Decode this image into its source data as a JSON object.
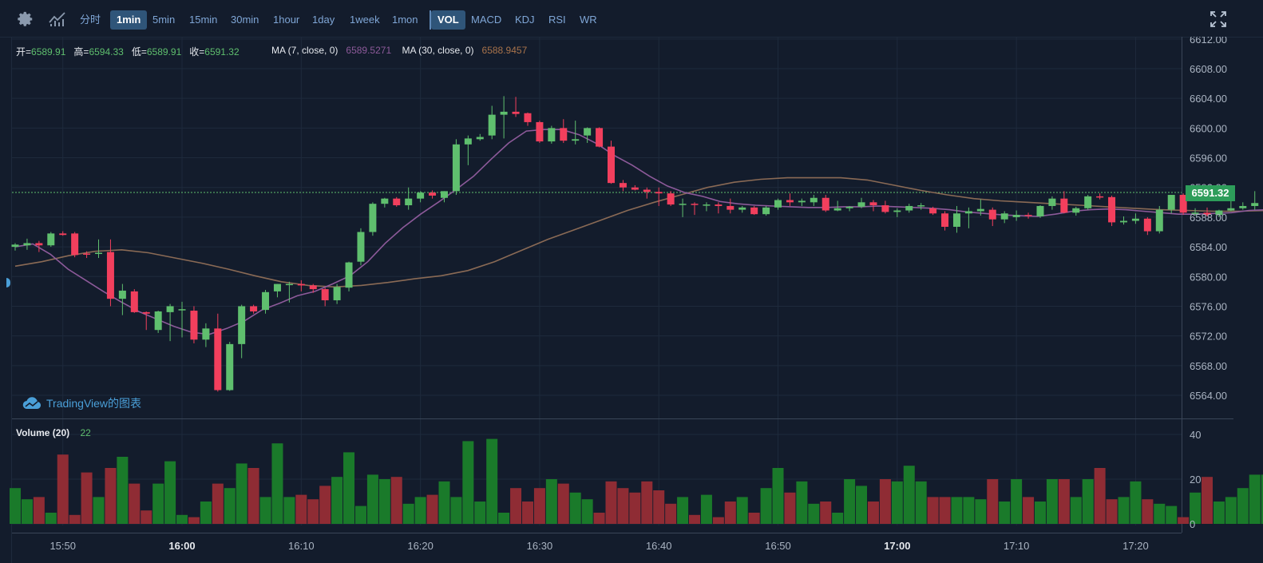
{
  "toolbar": {
    "settings_icon": "gear-icon",
    "indicators_icon": "chart-line-icon",
    "fullscreen_icon": "fullscreen-icon",
    "intervals": [
      {
        "label": "分时",
        "active": false
      },
      {
        "label": "1min",
        "active": true
      },
      {
        "label": "5min",
        "active": false
      },
      {
        "label": "15min",
        "active": false
      },
      {
        "label": "30min",
        "active": false
      },
      {
        "label": "1hour",
        "active": false
      },
      {
        "label": "1day",
        "active": false
      },
      {
        "label": "1week",
        "active": false
      },
      {
        "label": "1mon",
        "active": false
      }
    ],
    "indicators": [
      {
        "label": "VOL",
        "active": true
      },
      {
        "label": "MACD",
        "active": false
      },
      {
        "label": "KDJ",
        "active": false
      },
      {
        "label": "RSI",
        "active": false
      },
      {
        "label": "WR",
        "active": false
      }
    ]
  },
  "legend": {
    "open_label": "开=",
    "open_value": "6589.91",
    "high_label": "高=",
    "high_value": "6594.33",
    "low_label": "低=",
    "low_value": "6589.91",
    "close_label": "收=",
    "close_value": "6591.32",
    "ma7_label": "MA (7, close, 0)",
    "ma7_value": "6589.5271",
    "ma30_label": "MA (30, close, 0)",
    "ma30_value": "6588.9457"
  },
  "volume_legend": {
    "label": "Volume (20)",
    "value": "22"
  },
  "watermark": "TradingView的图表",
  "last_price": "6591.32",
  "colors": {
    "up": "#5fbf6e",
    "down": "#f23f5d",
    "vol_up": "#1a7a2a",
    "vol_down": "#8f2c34",
    "ma7": "#8d5a9a",
    "ma30": "#8a6a55",
    "background": "#131c2c"
  },
  "chart_data": {
    "type": "candlestick",
    "price_axis": {
      "ticks": [
        "6564.00",
        "6568.00",
        "6572.00",
        "6576.00",
        "6580.00",
        "6584.00",
        "6588.00",
        "6592.00",
        "6596.00",
        "6600.00",
        "6604.00",
        "6608.00",
        "6612.00"
      ],
      "ylim": [
        6563,
        6612
      ]
    },
    "volume_axis": {
      "ticks": [
        "0",
        "20",
        "40"
      ],
      "ylim": [
        0,
        42
      ]
    },
    "time_axis": [
      {
        "label": "15:50",
        "index": 4,
        "bold": false
      },
      {
        "label": "16:00",
        "index": 14,
        "bold": true
      },
      {
        "label": "16:10",
        "index": 24,
        "bold": false
      },
      {
        "label": "16:20",
        "index": 34,
        "bold": false
      },
      {
        "label": "16:30",
        "index": 44,
        "bold": false
      },
      {
        "label": "16:40",
        "index": 54,
        "bold": false
      },
      {
        "label": "16:50",
        "index": 64,
        "bold": false
      },
      {
        "label": "17:00",
        "index": 74,
        "bold": true
      },
      {
        "label": "17:10",
        "index": 84,
        "bold": false
      },
      {
        "label": "17:20",
        "index": 94,
        "bold": false
      }
    ],
    "candles": [
      [
        6584.0,
        6584.5,
        6583.5,
        6584.3
      ],
      [
        6584.2,
        6585.1,
        6583.6,
        6584.5
      ],
      [
        6584.5,
        6584.8,
        6583.3,
        6584.2
      ],
      [
        6584.2,
        6586.0,
        6584.0,
        6585.8
      ],
      [
        6585.8,
        6586.1,
        6585.5,
        6585.6
      ],
      [
        6585.8,
        6586.0,
        6582.6,
        6582.9
      ],
      [
        6583.1,
        6583.4,
        6582.5,
        6583.0
      ],
      [
        6583.1,
        6585.0,
        6582.5,
        6583.2
      ],
      [
        6583.3,
        6585.0,
        6576.0,
        6577.0
      ],
      [
        6577.0,
        6579.0,
        6574.8,
        6578.1
      ],
      [
        6578.0,
        6578.3,
        6575.1,
        6575.2
      ],
      [
        6575.2,
        6575.3,
        6572.8,
        6575.0
      ],
      [
        6572.8,
        6575.4,
        6572.4,
        6575.3
      ],
      [
        6575.2,
        6576.3,
        6571.3,
        6576.0
      ],
      [
        6575.6,
        6576.6,
        6571.8,
        6575.6
      ],
      [
        6575.4,
        6576.0,
        6571.0,
        6571.5
      ],
      [
        6571.5,
        6573.7,
        6570.5,
        6573.0
      ],
      [
        6573.0,
        6575.0,
        6564.5,
        6564.7
      ],
      [
        6564.7,
        6571.2,
        6564.6,
        6570.9
      ],
      [
        6570.9,
        6576.2,
        6569.0,
        6576.0
      ],
      [
        6576.0,
        6576.2,
        6575.0,
        6575.3
      ],
      [
        6575.5,
        6578.2,
        6575.0,
        6577.9
      ],
      [
        6578.0,
        6579.0,
        6577.2,
        6579.0
      ],
      [
        6579.0,
        6579.3,
        6576.5,
        6579.0
      ],
      [
        6579.0,
        6579.5,
        6578.0,
        6578.8
      ],
      [
        6578.8,
        6579.0,
        6577.8,
        6578.3
      ],
      [
        6578.3,
        6578.5,
        6576.0,
        6576.8
      ],
      [
        6576.8,
        6579.0,
        6576.3,
        6578.6
      ],
      [
        6578.5,
        6582.0,
        6578.0,
        6581.9
      ],
      [
        6582.0,
        6586.5,
        6581.5,
        6586.0
      ],
      [
        6586.0,
        6590.0,
        6585.5,
        6589.8
      ],
      [
        6589.8,
        6590.6,
        6589.3,
        6590.5
      ],
      [
        6590.5,
        6590.7,
        6589.4,
        6589.6
      ],
      [
        6589.6,
        6592.0,
        6589.0,
        6590.5
      ],
      [
        6590.5,
        6591.5,
        6590.0,
        6591.3
      ],
      [
        6591.3,
        6591.6,
        6590.5,
        6590.9
      ],
      [
        6590.6,
        6591.5,
        6590.0,
        6591.5
      ],
      [
        6591.5,
        6598.5,
        6591.0,
        6597.8
      ],
      [
        6597.8,
        6599.0,
        6595.0,
        6598.6
      ],
      [
        6598.5,
        6599.2,
        6598.3,
        6598.8
      ],
      [
        6599.0,
        6603.0,
        6598.5,
        6601.8
      ],
      [
        6601.8,
        6604.3,
        6598.6,
        6602.2
      ],
      [
        6602.2,
        6604.2,
        6601.5,
        6601.9
      ],
      [
        6602.0,
        6602.1,
        6600.3,
        6600.8
      ],
      [
        6600.8,
        6601.0,
        6598.0,
        6598.2
      ],
      [
        6598.2,
        6600.3,
        6597.9,
        6600.0
      ],
      [
        6600.0,
        6601.2,
        6598.0,
        6598.3
      ],
      [
        6598.3,
        6601.0,
        6597.8,
        6598.5
      ],
      [
        6599.0,
        6600.1,
        6598.0,
        6600.0
      ],
      [
        6600.0,
        6600.1,
        6597.4,
        6597.5
      ],
      [
        6597.5,
        6598.3,
        6592.5,
        6592.6
      ],
      [
        6592.6,
        6593.0,
        6591.5,
        6592.0
      ],
      [
        6592.0,
        6592.3,
        6591.6,
        6591.7
      ],
      [
        6591.7,
        6592.0,
        6590.5,
        6591.4
      ],
      [
        6591.4,
        6592.0,
        6589.5,
        6591.2
      ],
      [
        6591.2,
        6591.5,
        6589.5,
        6589.7
      ],
      [
        6589.7,
        6590.5,
        6588.0,
        6589.8
      ],
      [
        6589.8,
        6590.0,
        6588.3,
        6589.7
      ],
      [
        6589.7,
        6590.0,
        6588.8,
        6589.7
      ],
      [
        6589.7,
        6590.0,
        6588.5,
        6589.5
      ],
      [
        6589.5,
        6590.5,
        6588.5,
        6589.0
      ],
      [
        6589.0,
        6589.5,
        6588.6,
        6589.3
      ],
      [
        6589.3,
        6589.5,
        6588.3,
        6588.4
      ],
      [
        6588.4,
        6589.5,
        6588.2,
        6589.3
      ],
      [
        6589.3,
        6590.5,
        6589.0,
        6590.3
      ],
      [
        6590.3,
        6591.2,
        6589.5,
        6590.0
      ],
      [
        6590.0,
        6590.5,
        6589.5,
        6590.2
      ],
      [
        6590.0,
        6591.0,
        6589.5,
        6590.6
      ],
      [
        6590.6,
        6591.0,
        6588.7,
        6588.9
      ],
      [
        6588.9,
        6590.2,
        6588.8,
        6589.2
      ],
      [
        6589.2,
        6589.5,
        6588.8,
        6589.4
      ],
      [
        6589.4,
        6590.6,
        6589.2,
        6590.0
      ],
      [
        6590.0,
        6590.3,
        6588.8,
        6589.6
      ],
      [
        6589.6,
        6590.2,
        6588.5,
        6588.7
      ],
      [
        6588.7,
        6589.2,
        6588.0,
        6588.9
      ],
      [
        6588.9,
        6589.8,
        6588.6,
        6589.5
      ],
      [
        6589.5,
        6589.9,
        6589.0,
        6589.6
      ],
      [
        6589.2,
        6589.4,
        6588.3,
        6588.5
      ],
      [
        6588.5,
        6588.8,
        6586.2,
        6586.7
      ],
      [
        6586.7,
        6589.5,
        6585.9,
        6588.5
      ],
      [
        6588.5,
        6589.3,
        6586.5,
        6588.8
      ],
      [
        6588.8,
        6590.4,
        6588.2,
        6589.1
      ],
      [
        6589.0,
        6589.3,
        6586.8,
        6587.7
      ],
      [
        6587.7,
        6588.8,
        6587.2,
        6588.5
      ],
      [
        6588.0,
        6588.9,
        6587.5,
        6588.3
      ],
      [
        6588.3,
        6588.6,
        6587.8,
        6588.2
      ],
      [
        6588.1,
        6589.6,
        6587.9,
        6589.5
      ],
      [
        6589.5,
        6590.8,
        6589.0,
        6590.5
      ],
      [
        6590.5,
        6591.5,
        6588.5,
        6588.6
      ],
      [
        6588.6,
        6589.4,
        6588.2,
        6589.2
      ],
      [
        6589.2,
        6591.0,
        6589.0,
        6590.8
      ],
      [
        6590.8,
        6591.2,
        6590.4,
        6590.7
      ],
      [
        6590.7,
        6590.9,
        6586.8,
        6587.3
      ],
      [
        6587.3,
        6588.1,
        6587.0,
        6587.5
      ],
      [
        6587.5,
        6588.5,
        6587.1,
        6587.8
      ],
      [
        6587.8,
        6588.0,
        6585.6,
        6586.1
      ],
      [
        6586.1,
        6589.5,
        6585.8,
        6589.0
      ],
      [
        6589.0,
        6591.0,
        6588.5,
        6591.0
      ],
      [
        6591.0,
        6591.2,
        6588.3,
        6588.6
      ],
      [
        6588.6,
        6589.2,
        6588.2,
        6588.6
      ],
      [
        6588.6,
        6589.3,
        6588.1,
        6588.3
      ],
      [
        6588.3,
        6589.0,
        6588.0,
        6588.9
      ],
      [
        6588.9,
        6590.2,
        6588.8,
        6589.2
      ],
      [
        6589.2,
        6590.0,
        6589.0,
        6589.5
      ],
      [
        6589.5,
        6591.5,
        6589.0,
        6589.9
      ],
      [
        6589.9,
        6594.3,
        6589.9,
        6591.3
      ]
    ],
    "volumes": [
      16,
      11,
      12,
      5,
      31,
      4,
      23,
      12,
      25,
      30,
      18,
      6,
      18,
      28,
      4,
      3,
      10,
      18,
      16,
      27,
      25,
      12,
      36,
      12,
      13,
      11,
      17,
      21,
      32,
      8,
      22,
      20,
      21,
      9,
      12,
      13,
      19,
      12,
      37,
      10,
      38,
      5,
      16,
      10,
      16,
      20,
      18,
      14,
      11,
      5,
      19,
      16,
      14,
      19,
      15,
      9,
      12,
      4,
      13,
      3,
      10,
      12,
      5,
      16,
      25,
      14,
      19,
      9,
      10,
      5,
      20,
      17,
      10,
      20,
      19,
      26,
      19,
      12,
      12,
      12,
      12,
      11,
      20,
      10,
      20,
      12,
      10,
      20,
      20,
      12,
      20,
      25,
      11,
      12,
      19,
      11,
      9,
      8,
      3,
      14,
      21,
      10,
      12,
      16,
      22,
      22
    ],
    "ma7": [
      6584.0,
      6584.4,
      6583.0,
      6581.0,
      6579.5,
      6578.0,
      6576.6,
      6575.3,
      6574.3,
      6573.3,
      6572.5,
      6572.2,
      6573.0,
      6574.0,
      6575.5,
      6576.4,
      6577.4,
      6578.0,
      6579.0,
      6580.1,
      6582.0,
      6584.5,
      6586.6,
      6588.4,
      6590.0,
      6591.7,
      6593.5,
      6595.8,
      6598.0,
      6599.6,
      6599.8,
      6599.8,
      6599.1,
      6597.9,
      6596.3,
      6595.0,
      6593.5,
      6592.2,
      6591.3,
      6590.8,
      6590.1,
      6589.8,
      6589.6,
      6589.5,
      6589.4,
      6589.3,
      6589.3,
      6589.4,
      6589.4,
      6589.5,
      6589.4,
      6589.3,
      6589.2,
      6589.0,
      6588.7,
      6588.5,
      6588.3,
      6588.2,
      6588.1,
      6588.4,
      6588.8,
      6589.0,
      6589.1,
      6589.0,
      6588.8,
      6588.6,
      6588.4,
      6588.4,
      6588.5,
      6588.6,
      6588.9,
      6589.0
    ],
    "ma30": [
      6581.4,
      6582.0,
      6582.8,
      6583.4,
      6583.6,
      6583.2,
      6582.5,
      6581.8,
      6581.0,
      6580.1,
      6579.3,
      6578.8,
      6578.6,
      6578.8,
      6579.2,
      6579.7,
      6580.1,
      6580.8,
      6582.0,
      6583.5,
      6585.0,
      6586.3,
      6587.6,
      6588.9,
      6590.0,
      6591.0,
      6592.0,
      6592.7,
      6593.1,
      6593.3,
      6593.3,
      6593.3,
      6593.0,
      6592.3,
      6591.6,
      6591.0,
      6590.5,
      6590.2,
      6590.0,
      6589.8,
      6589.6,
      6589.4,
      6589.2,
      6589.0,
      6588.9,
      6588.8,
      6588.8,
      6588.9
    ]
  }
}
